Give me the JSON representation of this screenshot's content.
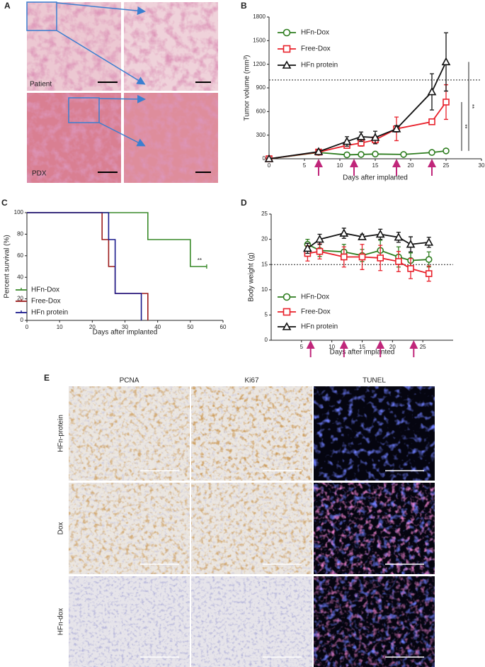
{
  "panel_a": {
    "label": "A",
    "texts": [
      "Patient",
      "PDX"
    ]
  },
  "panel_e": {
    "label": "E",
    "columns": [
      "PCNA",
      "Ki67",
      "TUNEL"
    ],
    "rows": [
      "HFn-protein",
      "Dox",
      "HFn-dox"
    ]
  },
  "chart_data": [
    {
      "type": "line",
      "panel_label": "B",
      "xlabel": "Days after implanted",
      "ylabel": "Tumor volume (mm³)",
      "xlim": [
        0,
        30
      ],
      "xticks": [
        0,
        5,
        10,
        15,
        20,
        25,
        30
      ],
      "ylim": [
        0,
        1800
      ],
      "yticks": [
        0,
        300,
        600,
        900,
        1200,
        1500,
        1800
      ],
      "legend": "upper-left",
      "reference_line": 1000,
      "treatment_days": [
        7,
        12,
        18,
        23
      ],
      "annotations": [
        "**",
        "**"
      ],
      "series": [
        {
          "name": "HFn-Dox",
          "color": "#2e7d1f",
          "marker": "circle",
          "x": [
            0,
            7,
            11,
            13,
            15,
            19,
            23,
            25
          ],
          "values": [
            0,
            80,
            50,
            55,
            60,
            55,
            80,
            100
          ],
          "errors": [
            0,
            10,
            15,
            15,
            10,
            10,
            15,
            15
          ]
        },
        {
          "name": "Free-Dox",
          "color": "#e8202a",
          "marker": "square",
          "x": [
            0,
            7,
            11,
            13,
            15,
            18,
            23,
            25
          ],
          "values": [
            0,
            85,
            170,
            200,
            240,
            380,
            470,
            720
          ],
          "errors": [
            0,
            15,
            30,
            40,
            40,
            150,
            30,
            220
          ]
        },
        {
          "name": "HFn protein",
          "color": "#111111",
          "marker": "triangle",
          "x": [
            0,
            7,
            11,
            13,
            15,
            18,
            23,
            25
          ],
          "values": [
            0,
            90,
            220,
            280,
            270,
            380,
            850,
            1230
          ],
          "errors": [
            0,
            20,
            60,
            60,
            80,
            40,
            230,
            370
          ]
        }
      ]
    },
    {
      "type": "step",
      "panel_label": "C",
      "xlabel": "Days after implanted",
      "ylabel": "Percent survival (%)",
      "xlim": [
        0,
        60
      ],
      "xticks": [
        0,
        10,
        20,
        30,
        40,
        50,
        60
      ],
      "ylim": [
        0,
        100
      ],
      "yticks": [
        0,
        20,
        40,
        60,
        80,
        100
      ],
      "legend": "lower-left",
      "annotations": [
        "**"
      ],
      "series": [
        {
          "name": "HFn-Dox",
          "color": "#3a8a2a",
          "x": [
            0,
            37,
            50,
            55
          ],
          "values": [
            100,
            75,
            50,
            50
          ]
        },
        {
          "name": "Free-Dox",
          "color": "#9b1b1b",
          "x": [
            0,
            23,
            25,
            27,
            37
          ],
          "values": [
            100,
            75,
            50,
            25,
            0
          ]
        },
        {
          "name": "HFn protein",
          "color": "#1a1a8c",
          "x": [
            0,
            25,
            27,
            35
          ],
          "values": [
            100,
            75,
            25,
            0
          ]
        }
      ]
    },
    {
      "type": "line",
      "panel_label": "D",
      "xlabel": "Days after implanted",
      "ylabel": "Body weight (g)",
      "xlim": [
        0,
        30
      ],
      "xticks": [
        5,
        10,
        15,
        20,
        25
      ],
      "ylim": [
        0,
        25
      ],
      "yticks": [
        0,
        5,
        10,
        15,
        20,
        25
      ],
      "legend": "lower-left",
      "reference_line": 15,
      "treatment_days": [
        6.5,
        12,
        18,
        23.5
      ],
      "series": [
        {
          "name": "HFn-Dox",
          "color": "#2e7d1f",
          "marker": "circle",
          "x": [
            6,
            8,
            12,
            15,
            18,
            21,
            23,
            26
          ],
          "values": [
            19,
            17.8,
            17.5,
            16.8,
            17.8,
            16.5,
            15.8,
            16
          ],
          "errors": [
            1,
            1.2,
            1.5,
            1.2,
            2,
            2,
            1.5,
            1.5
          ]
        },
        {
          "name": "Free-Dox",
          "color": "#e8202a",
          "marker": "square",
          "x": [
            6,
            8,
            12,
            15,
            18,
            21,
            23,
            26
          ],
          "values": [
            17.2,
            17.6,
            16.5,
            16.5,
            16.3,
            15.6,
            14.2,
            13.2
          ],
          "errors": [
            1.5,
            1.5,
            2,
            2.5,
            2.5,
            2,
            2,
            1.5
          ]
        },
        {
          "name": "HFn protein",
          "color": "#111111",
          "marker": "triangle",
          "x": [
            6,
            8,
            12,
            15,
            18,
            21,
            23,
            26
          ],
          "values": [
            18.2,
            20,
            21.2,
            20.5,
            21,
            20.4,
            19,
            19.4
          ],
          "errors": [
            1,
            1,
            1,
            0.5,
            1,
            1,
            1.5,
            1
          ]
        }
      ]
    }
  ]
}
